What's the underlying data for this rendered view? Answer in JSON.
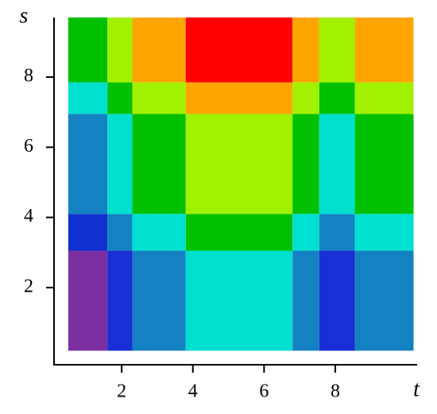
{
  "chart_data": {
    "type": "heatmap",
    "x_label": "t",
    "y_label": "s",
    "x_edges": [
      0.5,
      1.6,
      2.3,
      3.8,
      6.8,
      7.55,
      8.55,
      10.2
    ],
    "y_edges": [
      0.2,
      3.05,
      4.1,
      6.95,
      7.85,
      9.7
    ],
    "cell_colors": [
      [
        "#7b2fa0",
        "#1a2ed6",
        "#1482c2",
        "#00e0d0",
        "#1482c2",
        "#1a2ed6",
        "#1482c2"
      ],
      [
        "#1030d0",
        "#1482c2",
        "#00e0d0",
        "#00c000",
        "#00e0d0",
        "#1482c2",
        "#00e0d0"
      ],
      [
        "#1482c2",
        "#00e0d0",
        "#00c000",
        "#a0f000",
        "#00c000",
        "#00e0d0",
        "#00c000"
      ],
      [
        "#00e0d0",
        "#00c000",
        "#a0f000",
        "#ffa500",
        "#a0f000",
        "#00c000",
        "#a0f000"
      ],
      [
        "#00c000",
        "#a0f000",
        "#ffa500",
        "#ff0000",
        "#ffa500",
        "#a0f000",
        "#ffa500"
      ]
    ],
    "xlim": [
      0.1,
      10.3
    ],
    "ylim": [
      -0.2,
      9.7
    ],
    "xticks": [
      2,
      4,
      6,
      8
    ],
    "yticks": [
      2,
      4,
      6,
      8
    ]
  }
}
